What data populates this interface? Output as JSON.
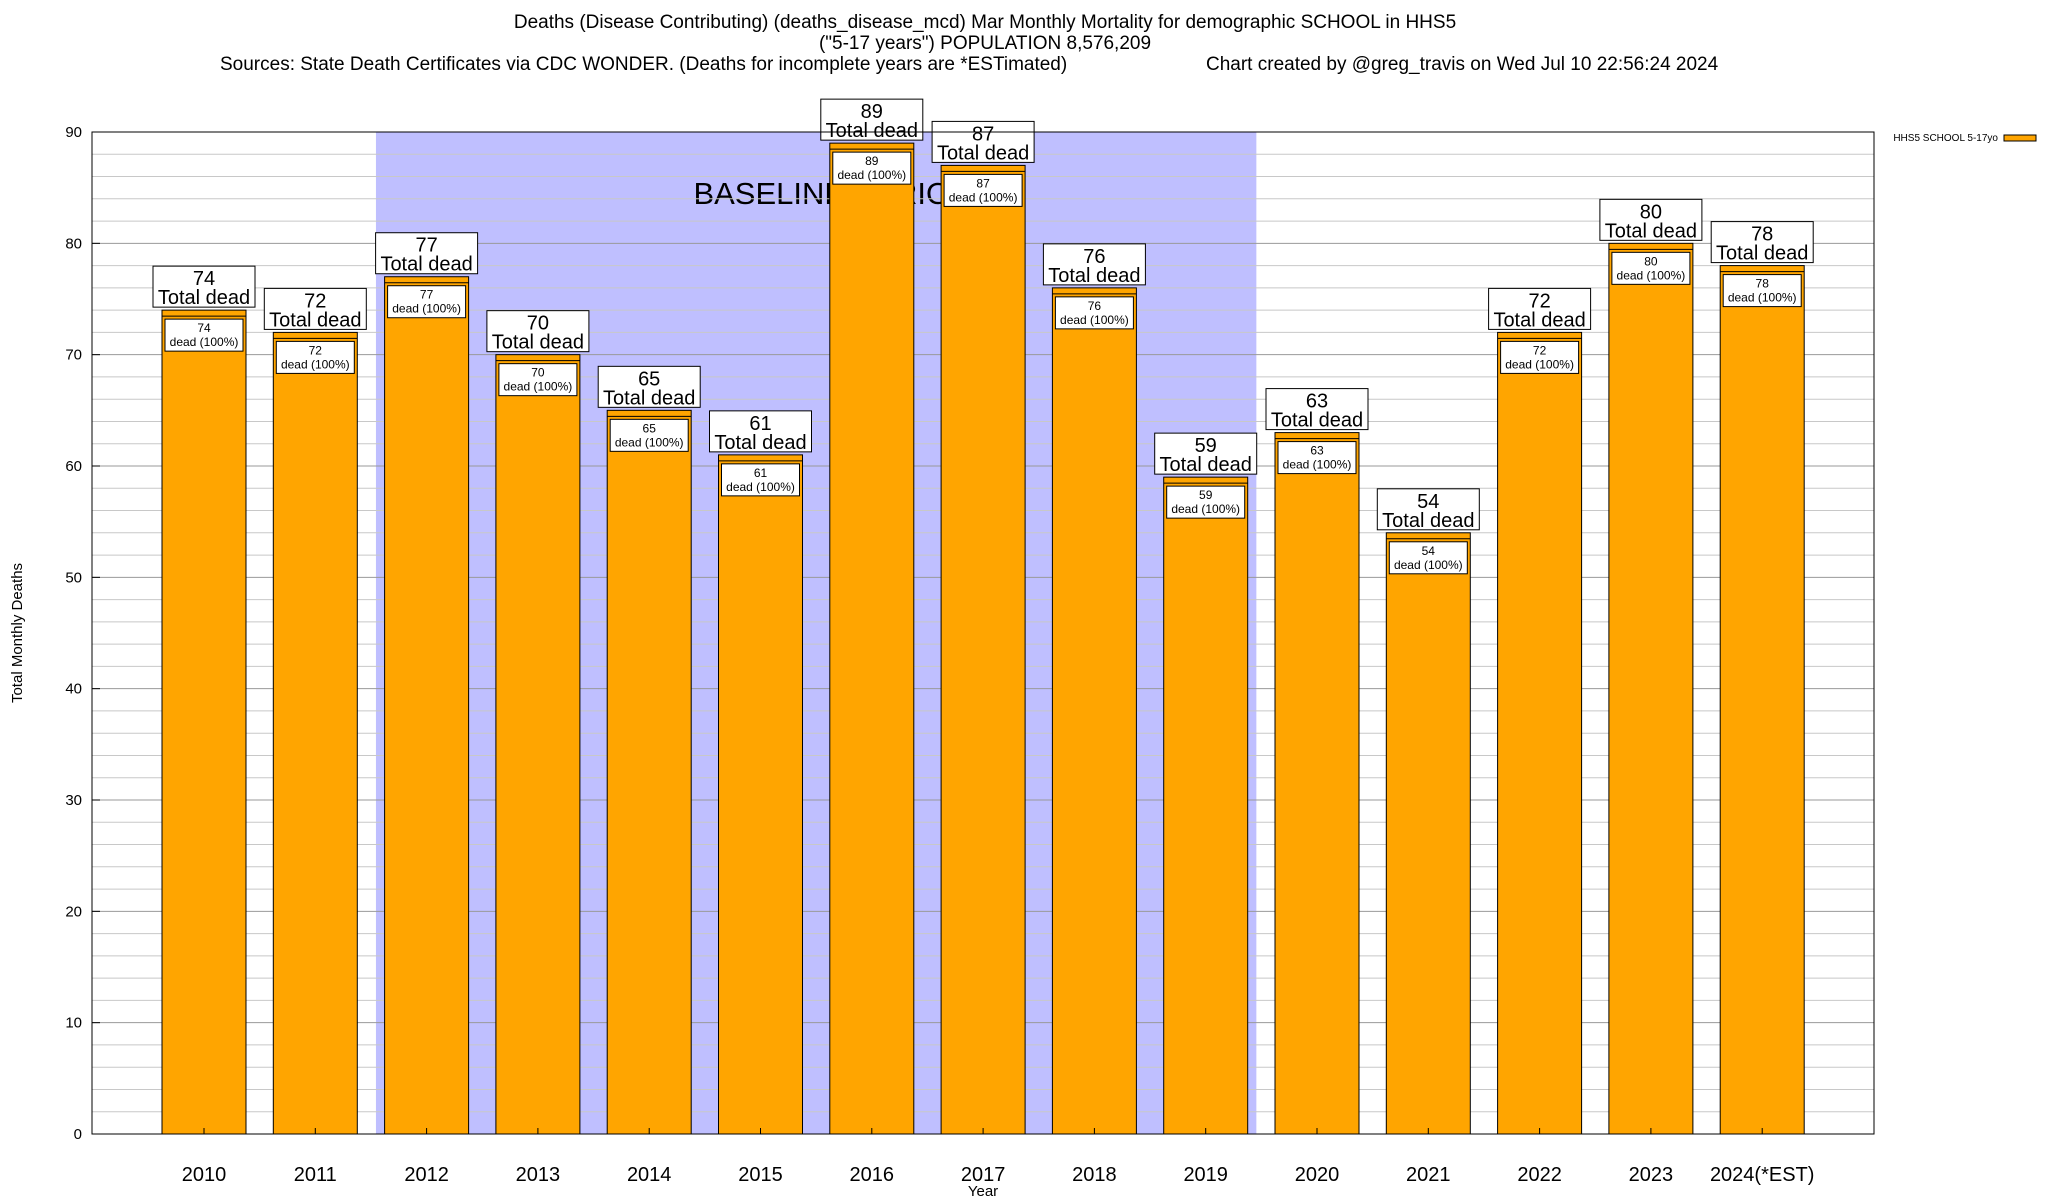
{
  "header": {
    "title_line1": "Deaths (Disease Contributing) (deaths_disease_mcd) Mar Monthly Mortality for demographic SCHOOL in HHS5",
    "title_line2": "(\"5-17 years\") POPULATION 8,576,209",
    "sources": "Sources: State Death Certificates via CDC WONDER. (Deaths for incomplete years are *ESTimated)",
    "credit": "Chart created by @greg_travis on Wed Jul 10 22:56:24 2024"
  },
  "chart_data": {
    "type": "bar",
    "title": "Deaths (Disease Contributing) (deaths_disease_mcd) Mar Monthly Mortality for demographic SCHOOL in HHS5",
    "xlabel": "Year",
    "ylabel": "Total Monthly Deaths",
    "ylim": [
      0,
      90
    ],
    "yticks": [
      0,
      10,
      20,
      30,
      40,
      50,
      60,
      70,
      80,
      90
    ],
    "grid": true,
    "legend_position": "top-right",
    "categories": [
      "2010",
      "2011",
      "2012",
      "2013",
      "2014",
      "2015",
      "2016",
      "2017",
      "2018",
      "2019",
      "2020",
      "2021",
      "2022",
      "2023",
      "2024(*EST)"
    ],
    "series": [
      {
        "name": "HHS5 SCHOOL 5-17yo",
        "color": "#FFA500",
        "values": [
          74,
          72,
          77,
          70,
          65,
          61,
          89,
          87,
          76,
          59,
          63,
          54,
          72,
          80,
          78
        ]
      }
    ],
    "top_label_suffix": "Total dead",
    "inner_label_text": "dead (100%)",
    "baseline": {
      "label": "BASELINE PERIOD",
      "start": "2012",
      "end": "2019",
      "color": "#BFBFFF"
    }
  }
}
